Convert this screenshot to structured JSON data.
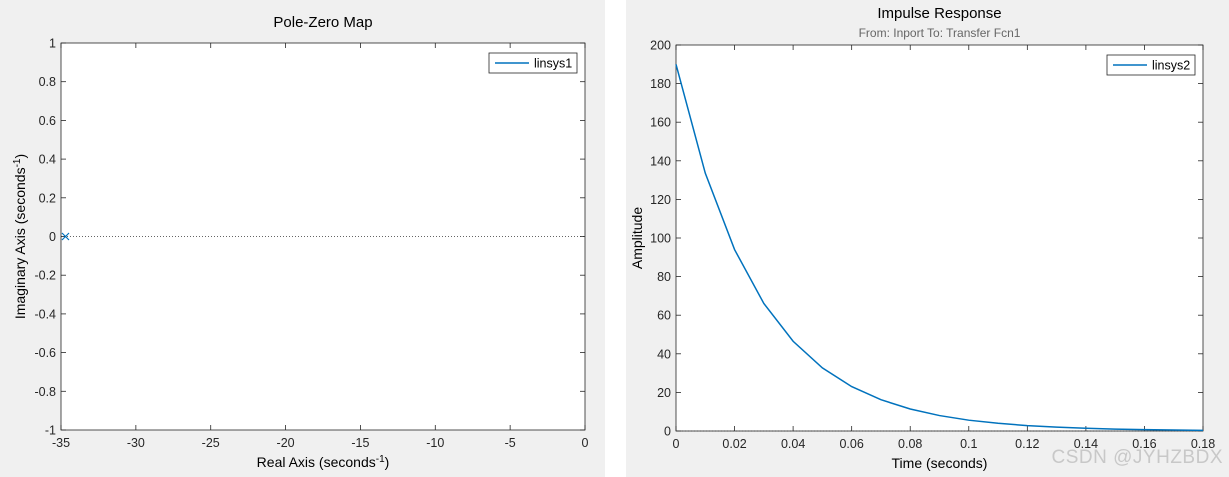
{
  "watermark": "CSDN @JYHZBDX",
  "chart_data": [
    {
      "type": "scatter",
      "title": "Pole-Zero Map",
      "xlabel": "Real Axis (seconds",
      "xlabel_sup": "-1",
      "xlabel_suffix": ")",
      "ylabel": "Imaginary Axis (seconds",
      "ylabel_sup": "-1",
      "ylabel_suffix": ")",
      "xlim": [
        -35,
        0
      ],
      "ylim": [
        -1,
        1
      ],
      "xticks": [
        "-35",
        "-30",
        "-25",
        "-20",
        "-15",
        "-10",
        "-5",
        "0"
      ],
      "yticks": [
        "-1",
        "-0.8",
        "-0.6",
        "-0.4",
        "-0.2",
        "0",
        "0.2",
        "0.4",
        "0.6",
        "0.8",
        "1"
      ],
      "grid": false,
      "legend_position": "top-right",
      "series": [
        {
          "name": "linsys1",
          "marker": "x",
          "points": [
            {
              "x": -34.7,
              "y": 0
            }
          ]
        }
      ],
      "reference_line": {
        "y": 0,
        "style": "dotted"
      },
      "color": "#0072bd"
    },
    {
      "type": "line",
      "title": "Impulse Response",
      "subtitle": "From: Inport  To: Transfer Fcn1",
      "xlabel": "Time (seconds)",
      "ylabel": "Amplitude",
      "xlim": [
        0,
        0.18
      ],
      "ylim": [
        0,
        200
      ],
      "xticks": [
        "0",
        "0.02",
        "0.04",
        "0.06",
        "0.08",
        "0.1",
        "0.12",
        "0.14",
        "0.16",
        "0.18"
      ],
      "yticks": [
        "0",
        "20",
        "40",
        "60",
        "80",
        "100",
        "120",
        "140",
        "160",
        "180",
        "200"
      ],
      "grid": false,
      "legend_position": "top-right",
      "series": [
        {
          "name": "linsys2",
          "x": [
            0,
            0.01,
            0.02,
            0.03,
            0.04,
            0.05,
            0.06,
            0.07,
            0.08,
            0.09,
            0.1,
            0.11,
            0.12,
            0.13,
            0.14,
            0.15,
            0.16,
            0.17,
            0.18
          ],
          "y": [
            190,
            133.6,
            94.0,
            66.1,
            46.5,
            32.7,
            23.0,
            16.2,
            11.4,
            8.0,
            5.6,
            4.0,
            2.8,
            2.0,
            1.4,
            1.0,
            0.7,
            0.5,
            0.3
          ]
        }
      ],
      "reference_line": {
        "y": 0,
        "style": "dotted"
      },
      "color": "#0072bd"
    }
  ]
}
